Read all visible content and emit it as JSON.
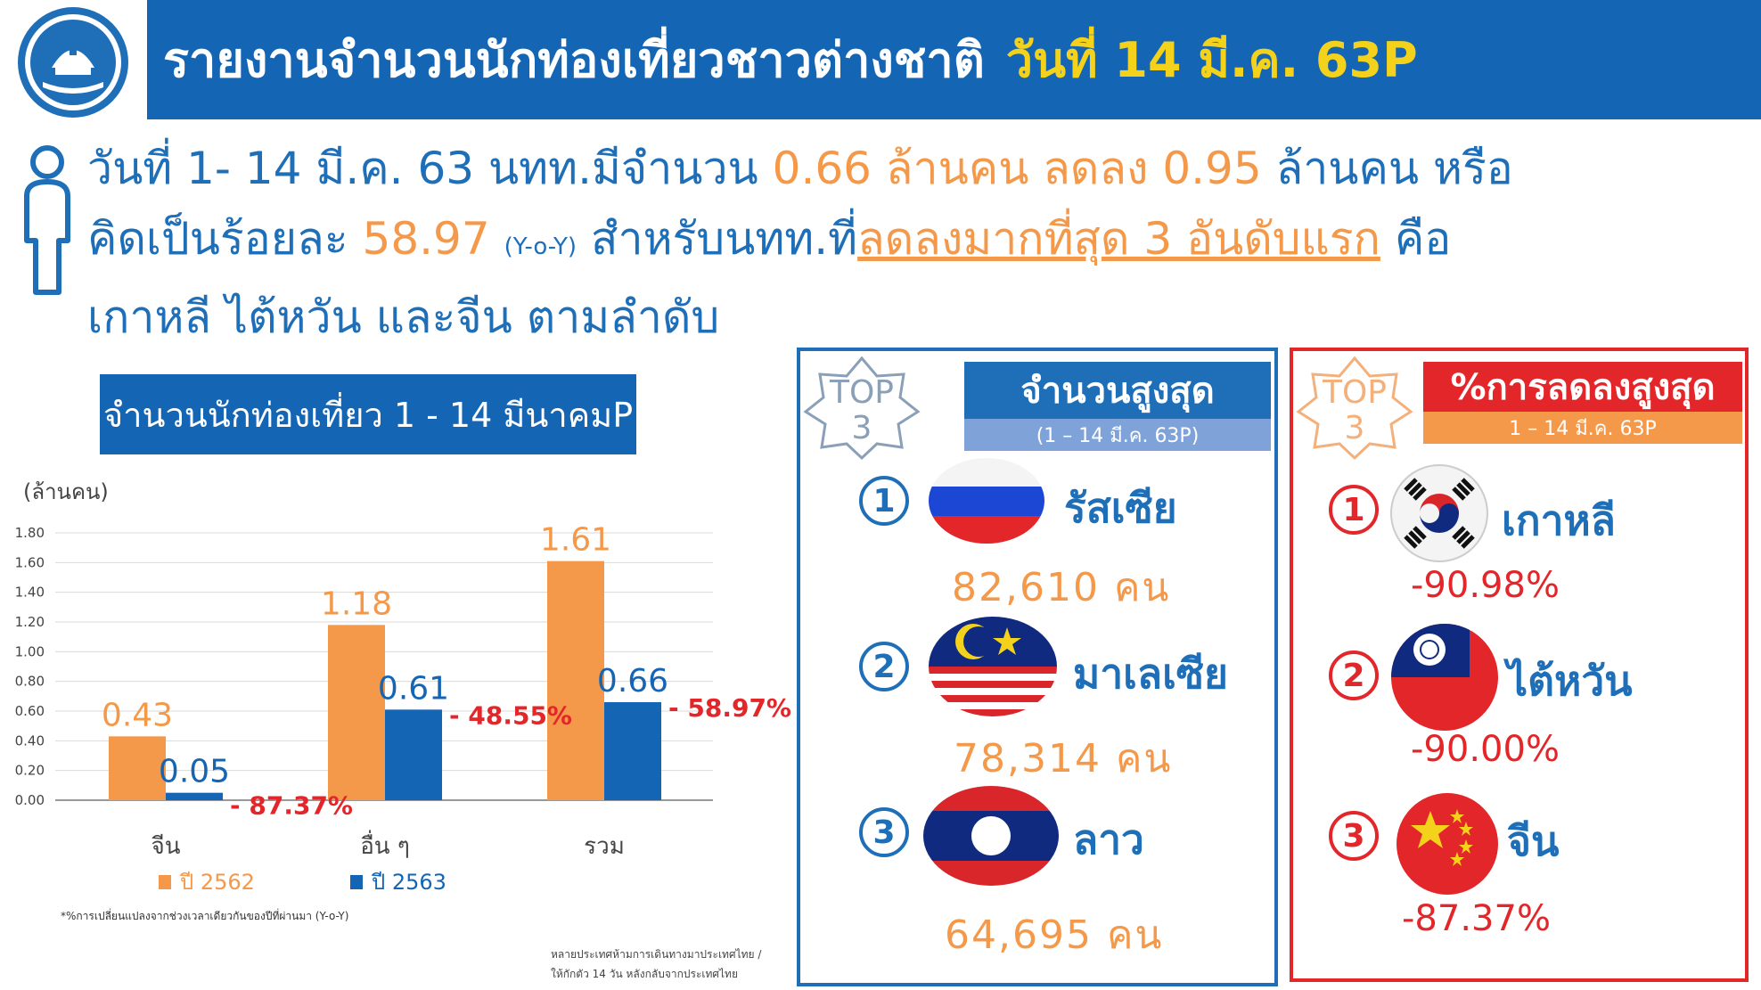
{
  "header": {
    "title": "รายงานจำนวนนักท่องเที่ยวชาวต่างชาติ",
    "date": "วันที่ 14 มี.ค. 63P"
  },
  "summary": {
    "l1_a": "วันที่ 1- 14 มี.ค. 63 นทท.มีจำนวน",
    "l1_b": "0.66 ล้านคน ลดลง 0.95",
    "l1_c": "ล้านคน หรือ",
    "l2_a": "คิดเป็นร้อยละ",
    "l2_b": "58.97",
    "l2_c": "(Y-o-Y)",
    "l2_d": "สำหรับนทท.ที่",
    "l2_e": "ลดลงมากที่สุด 3 อันดับแรก",
    "l2_f": "คือ",
    "l3": "เกาหลี ไต้หวัน และจีน ตามลำดับ"
  },
  "chart_title": "จำนวนนักท่องเที่ยว 1 - 14 มีนาคมP",
  "chart_data": {
    "type": "bar",
    "ylabel": "(ล้านคน)",
    "categories": [
      "จีน",
      "อื่น ๆ",
      "รวม"
    ],
    "series": [
      {
        "name": "ปี 2562",
        "values": [
          0.43,
          1.18,
          1.61
        ],
        "labels": [
          "0.43",
          "1.18",
          "1.61"
        ],
        "color": "#f4984a"
      },
      {
        "name": "ปี 2563",
        "values": [
          0.05,
          0.61,
          0.66
        ],
        "labels": [
          "0.05",
          "0.61",
          "0.66"
        ],
        "color": "#1565b5"
      }
    ],
    "changes": [
      "- 87.37%",
      "- 48.55%",
      "- 58.97%"
    ],
    "ylim": [
      0,
      1.8
    ],
    "yticks": [
      "0.00",
      "0.20",
      "0.40",
      "0.60",
      "0.80",
      "1.00",
      "1.20",
      "1.40",
      "1.60",
      "1.80"
    ],
    "grid": true,
    "legend_placement": "bottom"
  },
  "chart_footnote": "*%การเปลี่ยนแปลงจากช่วงเวลาเดียวกันของปีที่ผ่านมา (Y-o-Y)",
  "note": {
    "line1": "หลายประเทศห้ามการเดินทางมาประเทศไทย /",
    "line2": "ให้กักตัว 14 วัน หลังกลับจากประเทศไทย"
  },
  "top_count": {
    "badge_top": "TOP",
    "badge_num": "3",
    "title": "จำนวนสูงสุด",
    "subtitle": "(1 – 14 มี.ค. 63P)",
    "items": [
      {
        "rank": "1",
        "country": "รัสเซีย",
        "value": "82,610 คน",
        "flag": "russia-flag-icon"
      },
      {
        "rank": "2",
        "country": "มาเลเซีย",
        "value": "78,314 คน",
        "flag": "malaysia-flag-icon"
      },
      {
        "rank": "3",
        "country": "ลาว",
        "value": "64,695 คน",
        "flag": "laos-flag-icon"
      }
    ]
  },
  "top_drop": {
    "badge_top": "TOP",
    "badge_num": "3",
    "title": "%การลดลงสูงสุด",
    "subtitle": "1 – 14 มี.ค. 63P",
    "items": [
      {
        "rank": "1",
        "country": "เกาหลี",
        "value": "-90.98%",
        "flag": "korea-flag-icon"
      },
      {
        "rank": "2",
        "country": "ไต้หวัน",
        "value": "-90.00%",
        "flag": "taiwan-flag-icon"
      },
      {
        "rank": "3",
        "country": "จีน",
        "value": "-87.37%",
        "flag": "china-flag-icon"
      }
    ]
  },
  "colors": {
    "blue": "#1565b5",
    "orange": "#f4984a",
    "red": "#e3262a",
    "yellow": "#f4d21c"
  }
}
